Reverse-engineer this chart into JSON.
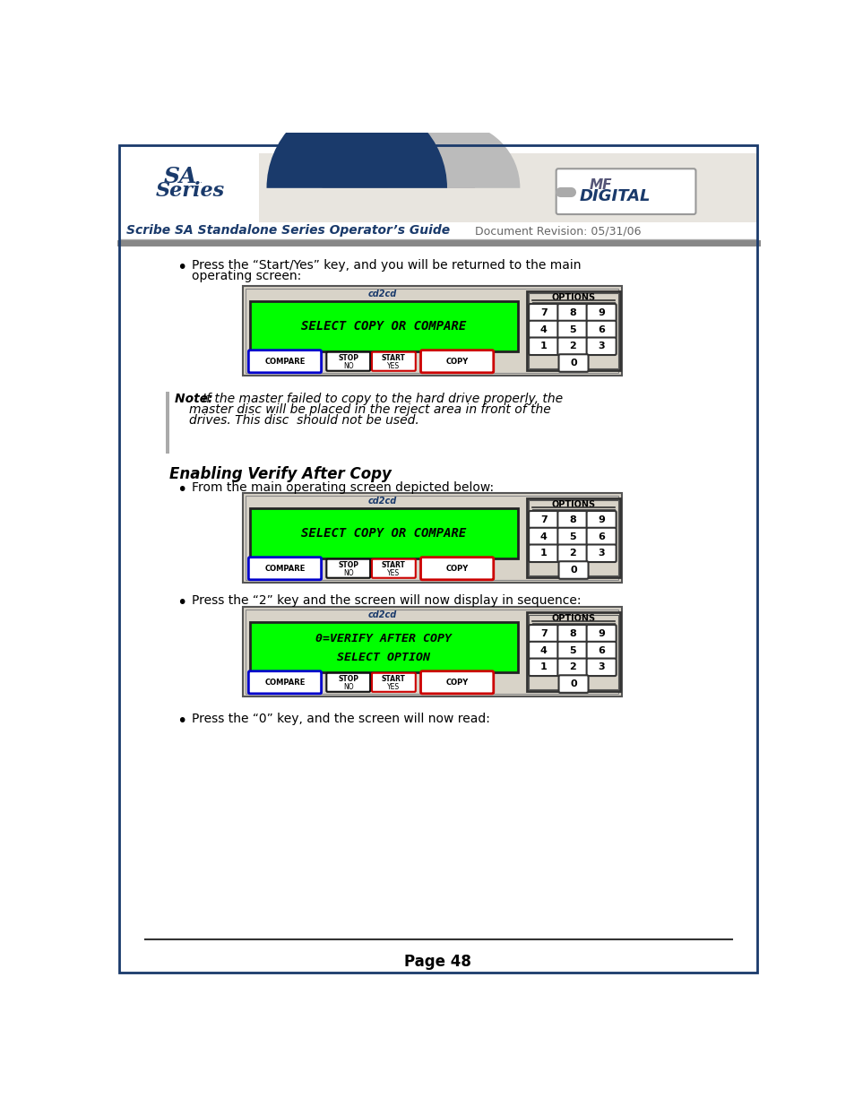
{
  "page_bg": "#ffffff",
  "border_color": "#1a3a6b",
  "header_title": "Scribe SA Standalone Series Operator’s Guide",
  "header_doc_rev": "Document Revision: 05/31/06",
  "footer_text": "Page 48",
  "bullet1_line1": "Press the “Start/Yes” key, and you will be returned to the main",
  "bullet1_line2": "operating screen:",
  "note_line1": "If the master failed to copy to the hard drive properly, the",
  "note_line2": "master disc will be placed in the reject area in front of the",
  "note_line3": "drives. This disc  should not be used.",
  "section_title": "Enabling Verify After Copy",
  "bullet2_text": "From the main operating screen depicted below:",
  "bullet3_text": "Press the “2” key and the screen will now display in sequence:",
  "bullet4_text": "Press the “0” key, and the screen will now read:",
  "display1_text": "SELECT COPY OR COMPARE",
  "display2_text1": "0=VERIFY AFTER COPY",
  "display2_text2": "SELECT OPTION",
  "panel_bg": "#d8d3c8",
  "display_bg": "#00ff00",
  "display_text_color": "#000000",
  "options_label": "OPTIONS",
  "button_compare_color": "#0000cc",
  "button_stop_color": "#111111",
  "button_start_color": "#cc0000",
  "button_copy_color": "#cc0000",
  "header_banner_bg": "#e8e5df",
  "header_blue": "#1a3a6b",
  "header_gray": "#9999aa",
  "mf_digital_color": "#555577"
}
